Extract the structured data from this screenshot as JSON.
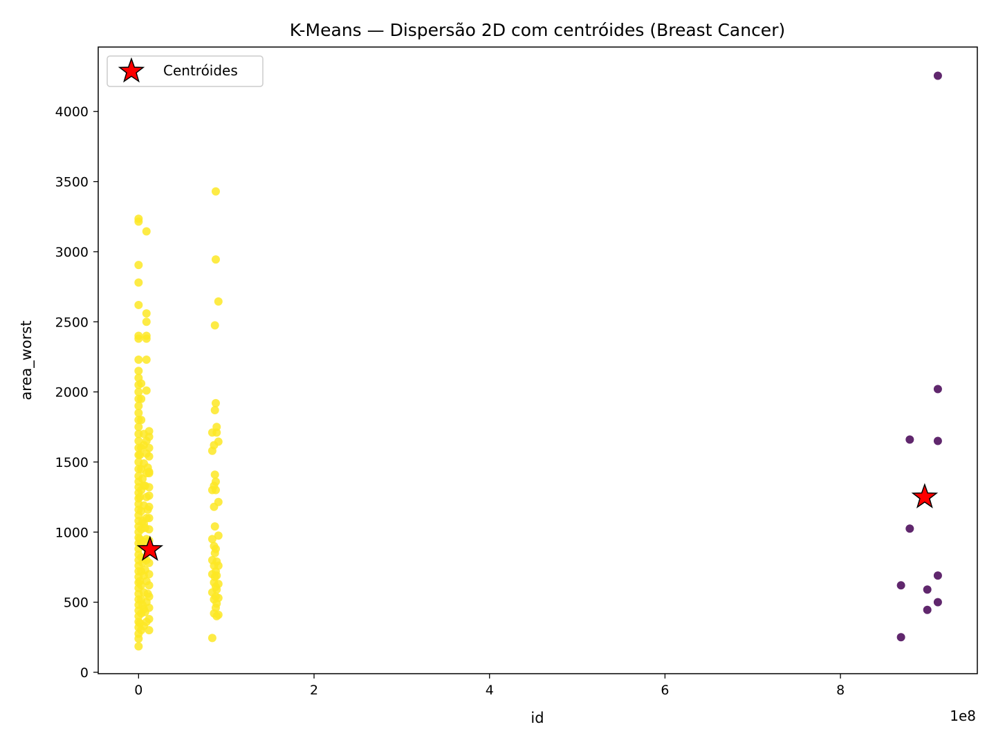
{
  "chart_data": {
    "type": "scatter",
    "title": "K-Means — Dispersão 2D com centróides (Breast Cancer)",
    "xlabel": "id",
    "ylabel": "area_worst",
    "x_offset_text": "1e8",
    "x_tick_labels": [
      "0",
      "2",
      "4",
      "6",
      "8"
    ],
    "x_ticks": [
      0,
      2,
      4,
      6,
      8
    ],
    "y_ticks": [
      0,
      500,
      1000,
      1500,
      2000,
      2500,
      3000,
      3500,
      4000
    ],
    "y_tick_labels": [
      "0",
      "500",
      "1000",
      "1500",
      "2000",
      "2500",
      "3000",
      "3500",
      "4000"
    ],
    "xlim": [
      -0.46,
      9.56
    ],
    "ylim": [
      -10,
      4460
    ],
    "grid": false,
    "legend": {
      "position": "top-left",
      "entries": [
        "Centróides"
      ]
    },
    "colors": {
      "cluster_0": "#440154",
      "cluster_1": "#fde725",
      "centroid_fill": "#ff0000",
      "centroid_edge": "#000000"
    },
    "series": [
      {
        "cluster": 1,
        "color": "#fde725",
        "points": [
          [
            0.0,
            185
          ],
          [
            0.0,
            240
          ],
          [
            0.0,
            275
          ],
          [
            0.0,
            320
          ],
          [
            0.0,
            360
          ],
          [
            0.0,
            400
          ],
          [
            0.0,
            440
          ],
          [
            0.0,
            480
          ],
          [
            0.0,
            520
          ],
          [
            0.0,
            560
          ],
          [
            0.0,
            600
          ],
          [
            0.0,
            640
          ],
          [
            0.0,
            680
          ],
          [
            0.0,
            720
          ],
          [
            0.0,
            760
          ],
          [
            0.0,
            800
          ],
          [
            0.0,
            840
          ],
          [
            0.0,
            880
          ],
          [
            0.0,
            920
          ],
          [
            0.0,
            960
          ],
          [
            0.0,
            1000
          ],
          [
            0.0,
            1040
          ],
          [
            0.0,
            1080
          ],
          [
            0.0,
            1120
          ],
          [
            0.0,
            1160
          ],
          [
            0.0,
            1200
          ],
          [
            0.0,
            1240
          ],
          [
            0.0,
            1280
          ],
          [
            0.0,
            1320
          ],
          [
            0.0,
            1360
          ],
          [
            0.0,
            1400
          ],
          [
            0.0,
            1450
          ],
          [
            0.0,
            1500
          ],
          [
            0.0,
            1550
          ],
          [
            0.0,
            1600
          ],
          [
            0.0,
            1650
          ],
          [
            0.0,
            1700
          ],
          [
            0.0,
            1750
          ],
          [
            0.0,
            1800
          ],
          [
            0.0,
            1850
          ],
          [
            0.0,
            1900
          ],
          [
            0.0,
            1950
          ],
          [
            0.0,
            2000
          ],
          [
            0.0,
            2050
          ],
          [
            0.0,
            2100
          ],
          [
            0.0,
            2150
          ],
          [
            0.0,
            2230
          ],
          [
            0.0,
            2380
          ],
          [
            0.0,
            2400
          ],
          [
            0.0,
            2620
          ],
          [
            0.0,
            2780
          ],
          [
            0.0,
            2905
          ],
          [
            0.0,
            3215
          ],
          [
            0.0,
            3235
          ],
          [
            0.03,
            300
          ],
          [
            0.03,
            420
          ],
          [
            0.03,
            520
          ],
          [
            0.03,
            620
          ],
          [
            0.03,
            720
          ],
          [
            0.03,
            820
          ],
          [
            0.03,
            920
          ],
          [
            0.03,
            1020
          ],
          [
            0.03,
            1150
          ],
          [
            0.03,
            1300
          ],
          [
            0.03,
            1450
          ],
          [
            0.03,
            1600
          ],
          [
            0.03,
            1800
          ],
          [
            0.03,
            1950
          ],
          [
            0.03,
            2060
          ],
          [
            0.06,
            330
          ],
          [
            0.06,
            450
          ],
          [
            0.06,
            570
          ],
          [
            0.06,
            690
          ],
          [
            0.06,
            810
          ],
          [
            0.06,
            930
          ],
          [
            0.06,
            1060
          ],
          [
            0.06,
            1190
          ],
          [
            0.06,
            1330
          ],
          [
            0.06,
            1490
          ],
          [
            0.06,
            1620
          ],
          [
            0.06,
            1700
          ],
          [
            0.09,
            360
          ],
          [
            0.09,
            500
          ],
          [
            0.09,
            650
          ],
          [
            0.09,
            800
          ],
          [
            0.09,
            950
          ],
          [
            0.09,
            1100
          ],
          [
            0.09,
            1250
          ],
          [
            0.09,
            1420
          ],
          [
            0.09,
            1560
          ],
          [
            0.09,
            1650
          ],
          [
            0.09,
            2230
          ],
          [
            0.09,
            2380
          ],
          [
            0.09,
            2400
          ],
          [
            0.09,
            2500
          ],
          [
            0.09,
            2560
          ],
          [
            0.09,
            3145
          ],
          [
            0.09,
            2010
          ],
          [
            0.12,
            300
          ],
          [
            0.12,
            380
          ],
          [
            0.12,
            460
          ],
          [
            0.12,
            540
          ],
          [
            0.12,
            620
          ],
          [
            0.12,
            700
          ],
          [
            0.12,
            780
          ],
          [
            0.12,
            860
          ],
          [
            0.12,
            940
          ],
          [
            0.12,
            1020
          ],
          [
            0.12,
            1100
          ],
          [
            0.12,
            1180
          ],
          [
            0.12,
            1260
          ],
          [
            0.12,
            1320
          ],
          [
            0.12,
            1420
          ],
          [
            0.12,
            1540
          ],
          [
            0.12,
            1600
          ],
          [
            0.12,
            1680
          ],
          [
            0.12,
            1720
          ],
          [
            0.12,
            1430
          ],
          [
            0.015,
            350
          ],
          [
            0.015,
            650
          ],
          [
            0.015,
            950
          ],
          [
            0.015,
            1250
          ],
          [
            0.015,
            1550
          ],
          [
            0.045,
            480
          ],
          [
            0.045,
            780
          ],
          [
            0.045,
            1080
          ],
          [
            0.045,
            1380
          ],
          [
            0.075,
            430
          ],
          [
            0.075,
            730
          ],
          [
            0.075,
            1030
          ],
          [
            0.075,
            1330
          ],
          [
            0.105,
            560
          ],
          [
            0.105,
            860
          ],
          [
            0.105,
            1160
          ],
          [
            0.105,
            1460
          ],
          [
            0.84,
            245
          ],
          [
            0.84,
            570
          ],
          [
            0.84,
            700
          ],
          [
            0.84,
            800
          ],
          [
            0.84,
            950
          ],
          [
            0.84,
            1300
          ],
          [
            0.84,
            1580
          ],
          [
            0.84,
            1710
          ],
          [
            0.86,
            420
          ],
          [
            0.86,
            520
          ],
          [
            0.86,
            640
          ],
          [
            0.86,
            760
          ],
          [
            0.86,
            900
          ],
          [
            0.86,
            1180
          ],
          [
            0.86,
            1330
          ],
          [
            0.86,
            1620
          ],
          [
            0.87,
            2475
          ],
          [
            0.87,
            1870
          ],
          [
            0.87,
            1410
          ],
          [
            0.87,
            1040
          ],
          [
            0.87,
            850
          ],
          [
            0.87,
            680
          ],
          [
            0.88,
            3430
          ],
          [
            0.88,
            2945
          ],
          [
            0.88,
            1920
          ],
          [
            0.88,
            1360
          ],
          [
            0.88,
            1300
          ],
          [
            0.88,
            880
          ],
          [
            0.88,
            720
          ],
          [
            0.88,
            610
          ],
          [
            0.88,
            540
          ],
          [
            0.88,
            460
          ],
          [
            0.89,
            400
          ],
          [
            0.89,
            490
          ],
          [
            0.89,
            590
          ],
          [
            0.89,
            690
          ],
          [
            0.89,
            790
          ],
          [
            0.89,
            1710
          ],
          [
            0.89,
            1750
          ],
          [
            0.91,
            410
          ],
          [
            0.91,
            530
          ],
          [
            0.91,
            630
          ],
          [
            0.91,
            760
          ],
          [
            0.91,
            975
          ],
          [
            0.91,
            1215
          ],
          [
            0.91,
            1645
          ],
          [
            0.91,
            2645
          ]
        ]
      },
      {
        "cluster": 0,
        "color": "#440154",
        "points": [
          [
            8.69,
            250
          ],
          [
            8.69,
            620
          ],
          [
            8.79,
            1025
          ],
          [
            8.79,
            1660
          ],
          [
            8.99,
            445
          ],
          [
            8.99,
            590
          ],
          [
            9.11,
            4255
          ],
          [
            9.11,
            2020
          ],
          [
            9.11,
            1650
          ],
          [
            9.11,
            690
          ],
          [
            9.11,
            500
          ]
        ]
      }
    ],
    "centroids": [
      {
        "x": 0.13,
        "y": 875
      },
      {
        "x": 8.96,
        "y": 1250
      }
    ]
  }
}
